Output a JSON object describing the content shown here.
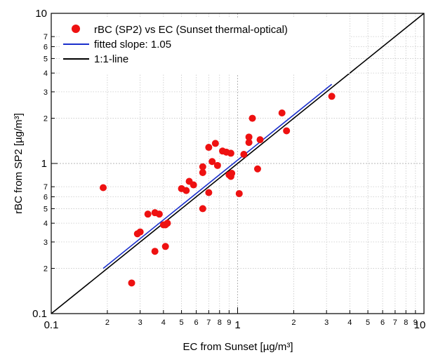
{
  "chart_data": {
    "type": "scatter",
    "title": "",
    "xlabel": "EC from Sunset [µg/m³]",
    "ylabel": "rBC from SP2 [µg/m³]",
    "xscale": "log",
    "yscale": "log",
    "xlim": [
      0.1,
      10
    ],
    "ylim": [
      0.1,
      10
    ],
    "grid": true,
    "legend_position": "top-left",
    "x_major_ticks": [
      0.1,
      1,
      10
    ],
    "x_major_labels": [
      "0.1",
      "1",
      "10"
    ],
    "x_minor_ticks": [
      0.2,
      0.3,
      0.4,
      0.5,
      0.6,
      0.7,
      0.8,
      0.9,
      2,
      3,
      4,
      5,
      6,
      7,
      8,
      9
    ],
    "x_minor_labels": [
      "2",
      "3",
      "4",
      "5",
      "6",
      "7",
      "8",
      "9",
      "2",
      "3",
      "4",
      "5",
      "6",
      "7",
      "8",
      "9"
    ],
    "y_major_ticks": [
      0.1,
      1,
      10
    ],
    "y_major_labels": [
      "0.1",
      "1",
      "10"
    ],
    "y_minor_ticks": [
      0.2,
      0.3,
      0.4,
      0.5,
      0.6,
      0.7,
      2,
      3,
      4,
      5,
      6,
      7
    ],
    "y_minor_labels": [
      "2",
      "3",
      "4",
      "5",
      "6",
      "7",
      "2",
      "3",
      "4",
      "5",
      "6",
      "7"
    ],
    "series": [
      {
        "name": "rBC (SP2) vs EC (Sunset thermal-optical)",
        "kind": "scatter",
        "color": "#ee1111",
        "x": [
          0.19,
          0.27,
          0.29,
          0.3,
          0.33,
          0.36,
          0.36,
          0.38,
          0.4,
          0.41,
          0.41,
          0.42,
          0.5,
          0.53,
          0.55,
          0.58,
          0.65,
          0.65,
          0.65,
          0.7,
          0.7,
          0.73,
          0.76,
          0.78,
          0.83,
          0.87,
          0.9,
          0.92,
          0.92,
          0.93,
          1.02,
          1.08,
          1.15,
          1.15,
          1.2,
          1.28,
          1.32,
          1.73,
          1.83,
          3.2
        ],
        "y": [
          0.69,
          0.16,
          0.34,
          0.35,
          0.46,
          0.47,
          0.26,
          0.46,
          0.39,
          0.28,
          0.39,
          0.4,
          0.68,
          0.66,
          0.76,
          0.72,
          0.5,
          0.87,
          0.95,
          1.28,
          0.64,
          1.03,
          1.36,
          0.97,
          1.21,
          1.19,
          0.84,
          1.17,
          0.82,
          0.86,
          0.63,
          1.15,
          1.38,
          1.5,
          2.0,
          0.92,
          1.44,
          2.17,
          1.65,
          2.8
        ]
      },
      {
        "name": "fitted slope: 1.05",
        "kind": "line",
        "color": "#1a2fcc",
        "x": [
          0.19,
          3.2
        ],
        "y": [
          0.2,
          3.37
        ]
      },
      {
        "name": "1:1-line",
        "kind": "line",
        "color": "#000000",
        "x": [
          0.1,
          10
        ],
        "y": [
          0.1,
          10
        ]
      }
    ]
  }
}
